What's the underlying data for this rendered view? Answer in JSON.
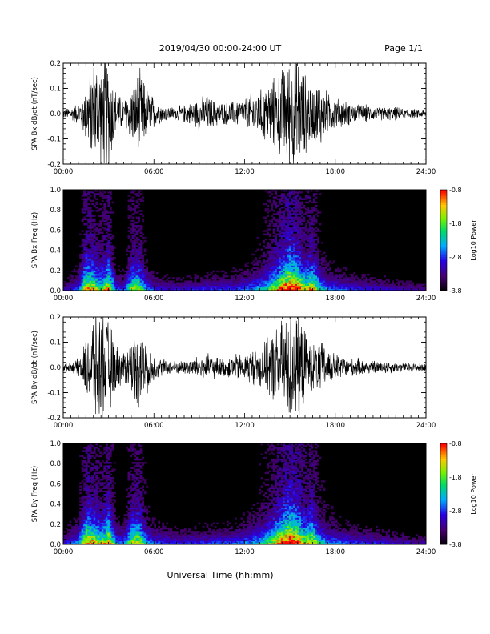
{
  "header": {
    "title": "2019/04/30  00:00-24:00 UT",
    "page": "Page 1/1"
  },
  "footer": {
    "xlabel": "Universal Time (hh:mm)"
  },
  "chart_data": [
    {
      "type": "line",
      "ylabel": "SPA Bx dB/dt (nT/sec)",
      "xlim": [
        0,
        24
      ],
      "ylim": [
        -0.2,
        0.2
      ],
      "xticks": [
        "00:00",
        "06:00",
        "12:00",
        "18:00",
        "24:00"
      ],
      "yticks": [
        "-0.2",
        "-0.1",
        "0.0",
        "0.1",
        "0.2"
      ],
      "envelope": {
        "hours": [
          0,
          0.5,
          1,
          1.5,
          2,
          2.5,
          3,
          3.5,
          4,
          4.5,
          5,
          5.5,
          6,
          6.5,
          7,
          7.5,
          8,
          8.5,
          9,
          9.5,
          10,
          10.5,
          11,
          11.5,
          12,
          12.5,
          13,
          13.5,
          14,
          14.5,
          15,
          15.5,
          16,
          16.5,
          17,
          17.5,
          18,
          18.5,
          19,
          19.5,
          20,
          20.5,
          21,
          21.5,
          22,
          22.5,
          23,
          23.5,
          24
        ],
        "amplitude": [
          0.02,
          0.03,
          0.05,
          0.12,
          0.25,
          0.25,
          0.25,
          0.1,
          0.06,
          0.12,
          0.2,
          0.12,
          0.07,
          0.04,
          0.03,
          0.03,
          0.04,
          0.05,
          0.07,
          0.08,
          0.06,
          0.05,
          0.05,
          0.06,
          0.07,
          0.09,
          0.1,
          0.14,
          0.16,
          0.2,
          0.25,
          0.25,
          0.18,
          0.12,
          0.15,
          0.09,
          0.07,
          0.06,
          0.05,
          0.04,
          0.04,
          0.03,
          0.03,
          0.03,
          0.03,
          0.02,
          0.02,
          0.02,
          0.015
        ]
      }
    },
    {
      "type": "heatmap",
      "ylabel": "SPA Bx Freq (Hz)",
      "xlim": [
        0,
        24
      ],
      "ylim": [
        0,
        1.0
      ],
      "xticks": [
        "00:00",
        "06:00",
        "12:00",
        "18:00",
        "24:00"
      ],
      "yticks": [
        "0.0",
        "0.2",
        "0.4",
        "0.6",
        "0.8",
        "1.0"
      ],
      "colorbar": {
        "label": "Log10 Power",
        "range": [
          -3.8,
          -0.8
        ],
        "ticks": [
          "-0.8",
          "-1.8",
          "-2.8",
          "-3.8"
        ]
      },
      "activity": {
        "hours": [
          0,
          1,
          1.5,
          2,
          2.5,
          3,
          3.5,
          4,
          4.5,
          5,
          5.5,
          6,
          7,
          8,
          9,
          10,
          11,
          12,
          12.5,
          13,
          13.5,
          14,
          14.5,
          15,
          15.5,
          16,
          16.5,
          17,
          17.5,
          18,
          19,
          20,
          21,
          22,
          23,
          24
        ],
        "strength": [
          0.2,
          0.35,
          0.8,
          0.75,
          0.6,
          0.8,
          0.35,
          0.3,
          0.65,
          0.7,
          0.4,
          0.3,
          0.25,
          0.25,
          0.28,
          0.3,
          0.3,
          0.35,
          0.4,
          0.45,
          0.55,
          0.7,
          0.85,
          1.0,
          0.9,
          0.7,
          0.8,
          0.5,
          0.4,
          0.35,
          0.3,
          0.28,
          0.25,
          0.22,
          0.2,
          0.18
        ]
      }
    },
    {
      "type": "line",
      "ylabel": "SPA By dB/dt (nT/sec)",
      "xlim": [
        0,
        24
      ],
      "ylim": [
        -0.2,
        0.2
      ],
      "xticks": [
        "00:00",
        "06:00",
        "12:00",
        "18:00",
        "24:00"
      ],
      "yticks": [
        "-0.2",
        "-0.1",
        "0.0",
        "0.1",
        "0.2"
      ],
      "envelope": {
        "hours": [
          0,
          0.5,
          1,
          1.5,
          2,
          2.5,
          3,
          3.5,
          4,
          4.5,
          5,
          5.5,
          6,
          6.5,
          7,
          7.5,
          8,
          8.5,
          9,
          9.5,
          10,
          10.5,
          11,
          11.5,
          12,
          12.5,
          13,
          13.5,
          14,
          14.5,
          15,
          15.5,
          16,
          16.5,
          17,
          17.5,
          18,
          18.5,
          19,
          19.5,
          20,
          20.5,
          21,
          21.5,
          22,
          22.5,
          23,
          23.5,
          24
        ],
        "amplitude": [
          0.02,
          0.02,
          0.04,
          0.12,
          0.25,
          0.25,
          0.22,
          0.1,
          0.07,
          0.12,
          0.18,
          0.12,
          0.06,
          0.04,
          0.03,
          0.03,
          0.03,
          0.04,
          0.05,
          0.06,
          0.05,
          0.04,
          0.05,
          0.06,
          0.06,
          0.08,
          0.09,
          0.12,
          0.17,
          0.21,
          0.25,
          0.25,
          0.16,
          0.1,
          0.12,
          0.08,
          0.06,
          0.05,
          0.04,
          0.04,
          0.03,
          0.03,
          0.03,
          0.03,
          0.02,
          0.02,
          0.02,
          0.02,
          0.015
        ]
      }
    },
    {
      "type": "heatmap",
      "ylabel": "SPA By Freq (Hz)",
      "xlim": [
        0,
        24
      ],
      "ylim": [
        0,
        1.0
      ],
      "xticks": [
        "00:00",
        "06:00",
        "12:00",
        "18:00",
        "24:00"
      ],
      "yticks": [
        "0.0",
        "0.2",
        "0.4",
        "0.6",
        "0.8",
        "1.0"
      ],
      "colorbar": {
        "label": "Log10 Power",
        "range": [
          -3.8,
          -0.8
        ],
        "ticks": [
          "-0.8",
          "-1.8",
          "-2.8",
          "-3.8"
        ]
      },
      "activity": {
        "hours": [
          0,
          1,
          1.5,
          2,
          2.5,
          3,
          3.5,
          4,
          4.5,
          5,
          5.5,
          6,
          7,
          8,
          9,
          10,
          11,
          12,
          12.5,
          13,
          13.5,
          14,
          14.5,
          15,
          15.5,
          16,
          16.5,
          17,
          17.5,
          18,
          19,
          20,
          21,
          22,
          23,
          24
        ],
        "strength": [
          0.25,
          0.4,
          0.85,
          0.8,
          0.65,
          0.85,
          0.4,
          0.35,
          0.7,
          0.75,
          0.45,
          0.35,
          0.3,
          0.28,
          0.3,
          0.32,
          0.32,
          0.38,
          0.42,
          0.48,
          0.58,
          0.72,
          0.88,
          1.0,
          0.92,
          0.72,
          0.8,
          0.5,
          0.42,
          0.38,
          0.32,
          0.3,
          0.27,
          0.24,
          0.22,
          0.2
        ]
      }
    }
  ]
}
